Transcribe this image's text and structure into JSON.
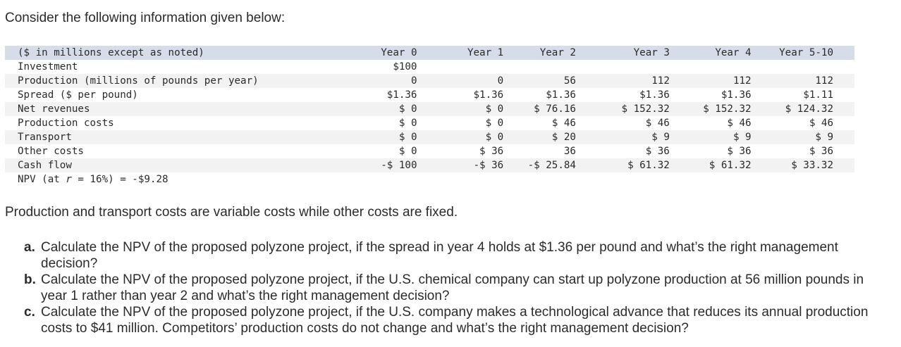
{
  "intro_text": "Consider the following information given below:",
  "table": {
    "header_label": "($ in millions except as noted)",
    "columns": [
      "Year 0",
      "Year 1",
      "Year 2",
      "Year 3",
      "Year 4",
      "Year 5-10"
    ],
    "rows": [
      {
        "label": "Investment",
        "values": [
          "$100",
          "",
          "",
          "",
          "",
          ""
        ]
      },
      {
        "label": "Production (millions of pounds per year)",
        "values": [
          "0",
          "0",
          "56",
          "112",
          "112",
          "112"
        ]
      },
      {
        "label": "Spread ($ per pound)",
        "values": [
          "$1.36",
          "$1.36",
          "$1.36",
          "$1.36",
          "$1.36",
          "$1.11"
        ]
      },
      {
        "label": "Net revenues",
        "values": [
          "$ 0",
          "$ 0",
          "$ 76.16",
          "$ 152.32",
          "$ 152.32",
          "$ 124.32"
        ]
      },
      {
        "label": "Production costs",
        "values": [
          "$ 0",
          "$ 0",
          "$ 46",
          "$ 46",
          "$ 46",
          "$ 46"
        ]
      },
      {
        "label": "Transport",
        "values": [
          "$ 0",
          "$ 0",
          "$ 20",
          "$ 9",
          "$ 9",
          "$ 9"
        ]
      },
      {
        "label": "Other costs",
        "values": [
          "$ 0",
          "$ 36",
          "36",
          "$ 36",
          "$ 36",
          "$ 36"
        ]
      },
      {
        "label": "Cash flow",
        "values": [
          "-$ 100",
          "-$ 36",
          "-$ 25.84",
          "$ 61.32",
          "$ 61.32",
          "$ 33.32"
        ]
      }
    ],
    "npv": {
      "prefix": "NPV (at ",
      "rate_symbol": "r",
      "suffix": " = 16%) = -$9.28"
    }
  },
  "note_text": "Production and transport costs are variable costs while other costs are fixed.",
  "questions": [
    {
      "letter": "a.",
      "text": "Calculate the NPV of the proposed polyzone project, if the spread in year 4 holds at $1.36 per pound and what’s the right management decision?"
    },
    {
      "letter": "b.",
      "text": "Calculate the NPV of the proposed polyzone project, if the U.S. chemical company can start up polyzone production at 56 million pounds in year 1 rather than year 2 and what’s the right management decision?"
    },
    {
      "letter": "c.",
      "text": "Calculate the NPV of the proposed polyzone project, if the U.S. company makes a technological advance that reduces its annual production costs to $41 million. Competitors’ production costs do not change and what’s the right management decision?"
    }
  ]
}
